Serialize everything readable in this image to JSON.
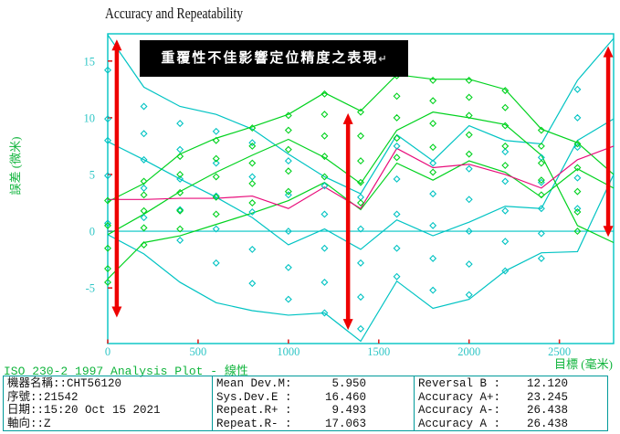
{
  "title": "Accuracy and Repeatability",
  "annotation": {
    "text": "重覆性不佳影響定位精度之表現",
    "return_mark": "↵"
  },
  "axes": {
    "y_title": "誤差 (微米)",
    "x_title": "目標 (毫米)",
    "x_ticks": [
      0,
      500,
      1000,
      1500,
      2000,
      2500
    ],
    "y_ticks": [
      15,
      10,
      5,
      0,
      -5
    ]
  },
  "footer": {
    "standard_line": "ISO 230-2 1997 Analysis Plot - 線性",
    "machine_info": [
      "機器名稱::CHT56120",
      "序號::21542",
      "日期::15:20 Oct 15 2021",
      "軸向::Z"
    ],
    "stats_left": [
      {
        "label": "Mean Dev.M:",
        "value": "5.950"
      },
      {
        "label": "Sys.Dev.E :",
        "value": "16.460"
      },
      {
        "label": "Repeat.R+ :",
        "value": "9.493"
      },
      {
        "label": "Repeat.R- :",
        "value": "17.063"
      }
    ],
    "stats_right": [
      {
        "label": "Reversal B :",
        "value": "12.120"
      },
      {
        "label": "Accuracy A+:",
        "value": "23.245"
      },
      {
        "label": "Accuracy A-:",
        "value": "26.438"
      },
      {
        "label": "Accuracy A :",
        "value": "26.438"
      }
    ]
  },
  "colors": {
    "cyan_line": "#00c3c3",
    "green_line": "#00d21e",
    "mean_line": "#e80c7a",
    "arrow_red": "#ee0000",
    "tick_text": "#2fc6c6",
    "tick_mark": "#dd2222",
    "border_teal": "#00a0a0",
    "green_text": "#10b43c"
  },
  "chart_data": {
    "type": "line",
    "title": "Accuracy and Repeatability",
    "xlabel": "目標 (毫米)",
    "ylabel": "誤差 (微米)",
    "xlim": [
      0,
      2800
    ],
    "ylim": [
      -9.9,
      17.4
    ],
    "grid": false,
    "zero_line": true,
    "x": [
      0,
      200,
      400,
      600,
      800,
      1000,
      1200,
      1400,
      1600,
      1800,
      2000,
      2200,
      2400,
      2600,
      2800
    ],
    "series": [
      {
        "name": "down-band-max",
        "color": "#00c3c3",
        "values": [
          17.3,
          12.7,
          11.0,
          10.3,
          9.0,
          6.8,
          4.8,
          3.3,
          8.5,
          6.2,
          9.3,
          8.0,
          7.7,
          13.3,
          17.0
        ]
      },
      {
        "name": "down-band-mid",
        "color": "#00c3c3",
        "values": [
          7.9,
          6.3,
          4.6,
          3.0,
          1.2,
          -1.2,
          0.2,
          -1.6,
          1.0,
          -0.4,
          0.8,
          2.2,
          2.0,
          8.0,
          9.9
        ]
      },
      {
        "name": "down-band-min",
        "color": "#00c3c3",
        "values": [
          -0.3,
          -2.0,
          -4.5,
          -6.3,
          -7.0,
          -7.4,
          -7.2,
          -9.7,
          -4.4,
          -6.8,
          -6.0,
          -3.5,
          -1.9,
          -1.8,
          5.0
        ]
      },
      {
        "name": "up-band-max",
        "color": "#00d21e",
        "values": [
          2.6,
          4.2,
          6.8,
          8.2,
          9.2,
          10.3,
          12.2,
          10.6,
          13.8,
          13.4,
          13.4,
          12.5,
          9.0,
          7.8,
          5.0
        ]
      },
      {
        "name": "up-band-mid",
        "color": "#00d21e",
        "values": [
          -0.3,
          1.5,
          3.5,
          5.2,
          6.7,
          8.1,
          6.5,
          4.2,
          8.9,
          10.5,
          10.0,
          9.4,
          6.7,
          0.5,
          -1.0
        ]
      },
      {
        "name": "up-band-min",
        "color": "#00d21e",
        "values": [
          -4.2,
          -1.0,
          -0.4,
          0.6,
          1.6,
          2.7,
          4.3,
          1.9,
          6.0,
          4.5,
          6.2,
          5.2,
          3.0,
          5.5,
          3.8
        ]
      },
      {
        "name": "bidirectional-mean",
        "color": "#e80c7a",
        "values": [
          2.8,
          2.8,
          2.9,
          2.9,
          3.1,
          2.0,
          3.9,
          2.0,
          7.3,
          5.6,
          5.9,
          5.0,
          3.8,
          6.3,
          7.5
        ]
      }
    ],
    "scatter": [
      {
        "name": "down-run-points",
        "color": "#00c3c3",
        "points": [
          [
            0,
            14.2
          ],
          [
            0,
            9.9
          ],
          [
            0,
            8.0
          ],
          [
            0,
            4.9
          ],
          [
            0,
            0.7
          ],
          [
            200,
            11.0
          ],
          [
            200,
            8.6
          ],
          [
            200,
            6.3
          ],
          [
            200,
            3.8
          ],
          [
            200,
            1.2
          ],
          [
            400,
            9.5
          ],
          [
            400,
            7.2
          ],
          [
            400,
            4.6
          ],
          [
            400,
            1.9
          ],
          [
            400,
            -0.8
          ],
          [
            600,
            8.8
          ],
          [
            600,
            6.0
          ],
          [
            600,
            3.1
          ],
          [
            600,
            0.2
          ],
          [
            600,
            -2.8
          ],
          [
            800,
            7.8
          ],
          [
            800,
            4.8
          ],
          [
            800,
            1.7
          ],
          [
            800,
            -1.6
          ],
          [
            800,
            -4.6
          ],
          [
            1000,
            6.2
          ],
          [
            1000,
            3.2
          ],
          [
            1000,
            0.0
          ],
          [
            1000,
            -3.2
          ],
          [
            1000,
            -6.0
          ],
          [
            1200,
            4.0
          ],
          [
            1200,
            1.5
          ],
          [
            1200,
            -1.5
          ],
          [
            1200,
            -4.5
          ],
          [
            1200,
            -7.2
          ],
          [
            1400,
            3.0
          ],
          [
            1400,
            0.2
          ],
          [
            1400,
            -2.8
          ],
          [
            1400,
            -5.8
          ],
          [
            1400,
            -8.6
          ],
          [
            1600,
            7.5
          ],
          [
            1600,
            4.6
          ],
          [
            1600,
            1.5
          ],
          [
            1600,
            -1.5
          ],
          [
            1600,
            -4.0
          ],
          [
            1800,
            6.0
          ],
          [
            1800,
            3.3
          ],
          [
            1800,
            0.5
          ],
          [
            1800,
            -2.4
          ],
          [
            1800,
            -5.2
          ],
          [
            2000,
            5.5
          ],
          [
            2000,
            2.8
          ],
          [
            2000,
            0.0
          ],
          [
            2000,
            -2.9
          ],
          [
            2000,
            -5.6
          ],
          [
            2200,
            7.0
          ],
          [
            2200,
            4.4
          ],
          [
            2200,
            1.8
          ],
          [
            2200,
            -0.9
          ],
          [
            2200,
            -3.5
          ],
          [
            2400,
            6.5
          ],
          [
            2400,
            4.3
          ],
          [
            2400,
            2.0
          ],
          [
            2400,
            -0.2
          ],
          [
            2400,
            -2.4
          ],
          [
            2600,
            12.5
          ],
          [
            2600,
            10.0
          ],
          [
            2600,
            7.4
          ],
          [
            2600,
            4.7
          ],
          [
            2600,
            2.0
          ]
        ]
      },
      {
        "name": "up-run-points",
        "color": "#00d21e",
        "points": [
          [
            0,
            -4.5
          ],
          [
            0,
            -3.3
          ],
          [
            0,
            -1.5
          ],
          [
            0,
            0.5
          ],
          [
            0,
            2.7
          ],
          [
            200,
            -1.2
          ],
          [
            200,
            0.3
          ],
          [
            200,
            1.8
          ],
          [
            200,
            3.2
          ],
          [
            200,
            4.4
          ],
          [
            400,
            0.2
          ],
          [
            400,
            1.8
          ],
          [
            400,
            3.4
          ],
          [
            400,
            5.0
          ],
          [
            400,
            6.6
          ],
          [
            600,
            1.5
          ],
          [
            600,
            3.0
          ],
          [
            600,
            4.8
          ],
          [
            600,
            6.4
          ],
          [
            600,
            8.0
          ],
          [
            800,
            2.5
          ],
          [
            800,
            4.2
          ],
          [
            800,
            6.0
          ],
          [
            800,
            7.5
          ],
          [
            800,
            9.1
          ],
          [
            1000,
            3.5
          ],
          [
            1000,
            5.3
          ],
          [
            1000,
            7.2
          ],
          [
            1000,
            8.9
          ],
          [
            1000,
            10.2
          ],
          [
            1200,
            4.8
          ],
          [
            1200,
            6.6
          ],
          [
            1200,
            8.4
          ],
          [
            1200,
            10.3
          ],
          [
            1200,
            12.1
          ],
          [
            1400,
            2.5
          ],
          [
            1400,
            4.3
          ],
          [
            1400,
            6.2
          ],
          [
            1400,
            8.4
          ],
          [
            1400,
            10.5
          ],
          [
            1600,
            6.5
          ],
          [
            1600,
            8.2
          ],
          [
            1600,
            10.0
          ],
          [
            1600,
            11.9
          ],
          [
            1600,
            13.7
          ],
          [
            1800,
            5.2
          ],
          [
            1800,
            7.4
          ],
          [
            1800,
            9.5
          ],
          [
            1800,
            11.5
          ],
          [
            1800,
            13.3
          ],
          [
            2000,
            6.8
          ],
          [
            2000,
            8.5
          ],
          [
            2000,
            10.2
          ],
          [
            2000,
            11.8
          ],
          [
            2000,
            13.3
          ],
          [
            2200,
            5.8
          ],
          [
            2200,
            7.5
          ],
          [
            2200,
            9.3
          ],
          [
            2200,
            10.9
          ],
          [
            2200,
            12.4
          ],
          [
            2400,
            3.2
          ],
          [
            2400,
            4.5
          ],
          [
            2400,
            6.0
          ],
          [
            2400,
            7.5
          ],
          [
            2400,
            8.9
          ],
          [
            2600,
            0.0
          ],
          [
            2600,
            1.7
          ],
          [
            2600,
            3.5
          ],
          [
            2600,
            5.6
          ],
          [
            2600,
            7.7
          ]
        ]
      }
    ],
    "arrows": [
      {
        "name": "repeatability-span-left",
        "x": 50,
        "y_from": -7.6,
        "y_to": 16.9
      },
      {
        "name": "repeatability-span-middle",
        "x": 1330,
        "y_from": -8.7,
        "y_to": 10.4
      },
      {
        "name": "repeatability-span-right",
        "x": 2770,
        "y_from": -0.5,
        "y_to": 16.3
      }
    ]
  }
}
